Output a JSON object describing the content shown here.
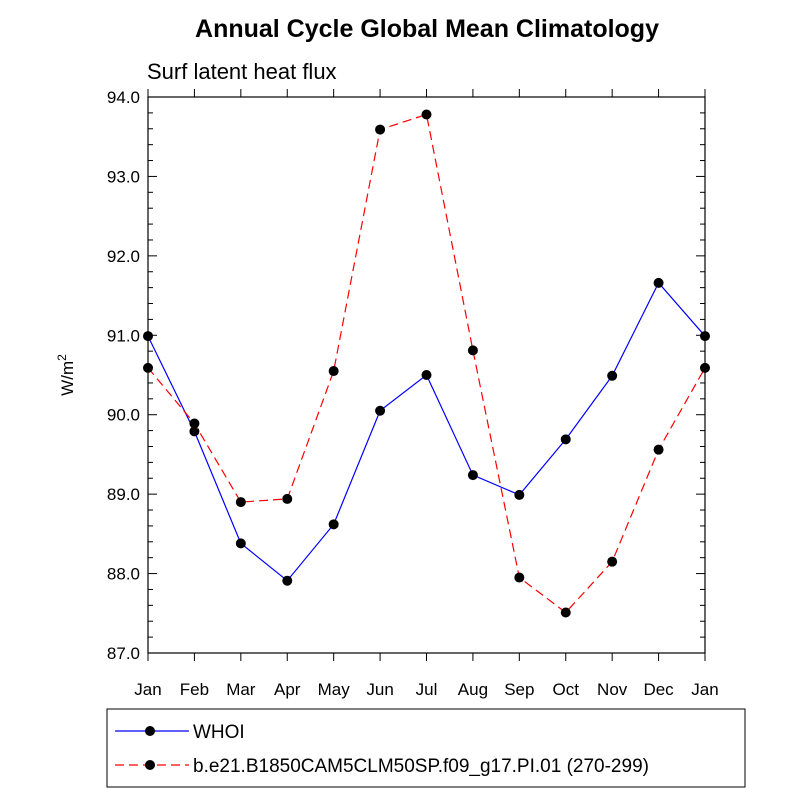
{
  "chart_data": {
    "type": "line",
    "title": "Annual Cycle Global Mean Climatology",
    "subtitle": "Surf latent heat flux",
    "ylabel_base": "W/m",
    "ylabel_sup": "2",
    "xlabel": "",
    "categories": [
      "Jan",
      "Feb",
      "Mar",
      "Apr",
      "May",
      "Jun",
      "Jul",
      "Aug",
      "Sep",
      "Oct",
      "Nov",
      "Dec",
      "Jan"
    ],
    "ylim": [
      87.0,
      94.0
    ],
    "yticks": [
      "87.0",
      "88.0",
      "89.0",
      "90.0",
      "91.0",
      "92.0",
      "93.0",
      "94.0"
    ],
    "series": [
      {
        "name": "WHOI",
        "color": "#0000ff",
        "dash": "solid",
        "values": [
          90.99,
          89.79,
          88.38,
          87.91,
          88.62,
          90.05,
          90.5,
          89.24,
          88.99,
          89.69,
          90.49,
          91.66,
          90.99
        ]
      },
      {
        "name": "b.e21.B1850CAM5CLM50SP.f09_g17.PI.01 (270-299)",
        "color": "#ff0000",
        "dash": "dashed",
        "values": [
          90.59,
          89.89,
          88.9,
          88.94,
          90.55,
          93.59,
          93.78,
          90.81,
          87.95,
          87.51,
          88.15,
          89.56,
          90.59
        ]
      }
    ],
    "legend_position": "bottom"
  }
}
